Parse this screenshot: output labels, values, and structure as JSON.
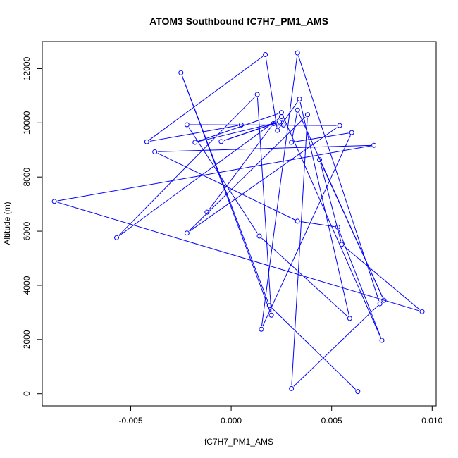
{
  "chart_data": {
    "type": "line",
    "title": "ATOM3 Southbound fC7H7_PM1_AMS",
    "xlabel": "fC7H7_PM1_AMS",
    "ylabel": "Altitude (m)",
    "xlim": [
      -0.0094,
      0.0102
    ],
    "ylim": [
      -450,
      13000
    ],
    "xticks": [
      -0.005,
      0.0,
      0.005,
      0.01
    ],
    "xtick_labels": [
      "-0.005",
      "0.000",
      "0.005",
      "0.010"
    ],
    "yticks": [
      0,
      2000,
      4000,
      6000,
      8000,
      10000,
      12000
    ],
    "ytick_labels": [
      "0",
      "2000",
      "4000",
      "6000",
      "8000",
      "10000",
      "12000"
    ],
    "grid": false,
    "color": "#0000ff",
    "x": [
      0.0063,
      0.0019,
      -0.0025,
      0.002,
      0.0013,
      -0.0057,
      0.0025,
      0.0026,
      -0.0022,
      0.0014,
      0.0059,
      0.0034,
      0.0023,
      0.0017,
      -0.0042,
      0.0005,
      0.0054,
      -0.0022,
      0.0038,
      0.003,
      0.0074,
      0.0033,
      0.0015,
      0.006,
      0.003,
      0.0033,
      0.0076,
      0.0044,
      0.0055,
      0.0095,
      -0.0088,
      0.0071,
      -0.0038,
      0.0033,
      0.0053,
      0.0075,
      0.0025,
      -0.0018,
      0.0024,
      -0.0005,
      0.0021,
      -0.0012
    ],
    "y": [
      80,
      3250,
      11850,
      2900,
      11050,
      5760,
      10230,
      9920,
      9930,
      5820,
      2780,
      10880,
      9720,
      12520,
      9300,
      9920,
      9900,
      5930,
      10300,
      190,
      3320,
      12580,
      2380,
      9640,
      9280,
      10470,
      3450,
      8640,
      5510,
      3030,
      7100,
      9170,
      8930,
      6370,
      6150,
      1970,
      10380,
      9280,
      10030,
      9310,
      9970,
      6700
    ]
  }
}
